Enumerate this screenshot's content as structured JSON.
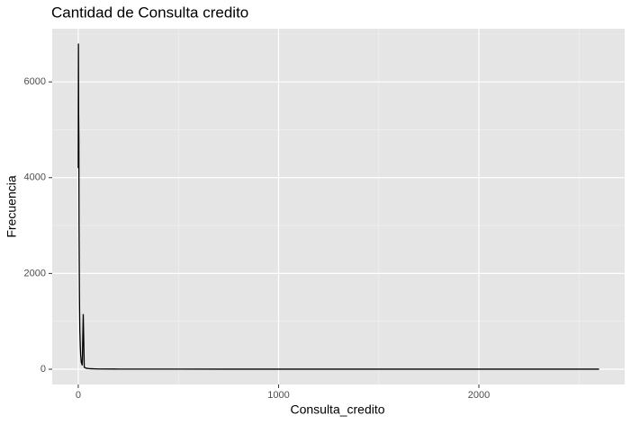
{
  "chart_data": {
    "type": "line",
    "title": "Cantidad de Consulta credito",
    "x_label": "Consulta_credito",
    "y_label": "Frecuencia",
    "x": [
      0,
      1,
      2,
      3,
      4,
      5,
      6,
      7,
      8,
      10,
      12,
      15,
      20,
      25,
      30,
      40,
      60,
      100,
      200,
      500,
      1000,
      1500,
      2000,
      2600
    ],
    "values": [
      4200,
      6800,
      5300,
      4800,
      3000,
      2200,
      1500,
      1100,
      800,
      500,
      300,
      150,
      80,
      1150,
      40,
      20,
      10,
      5,
      3,
      2,
      1,
      1,
      1,
      1
    ],
    "color": "#000000",
    "xlim": [
      -130,
      2728
    ],
    "xticks": [
      0,
      1000,
      2000
    ],
    "ylim": [
      -319,
      7110
    ],
    "yticks": [
      0,
      2000,
      4000,
      6000
    ],
    "grid": true
  }
}
